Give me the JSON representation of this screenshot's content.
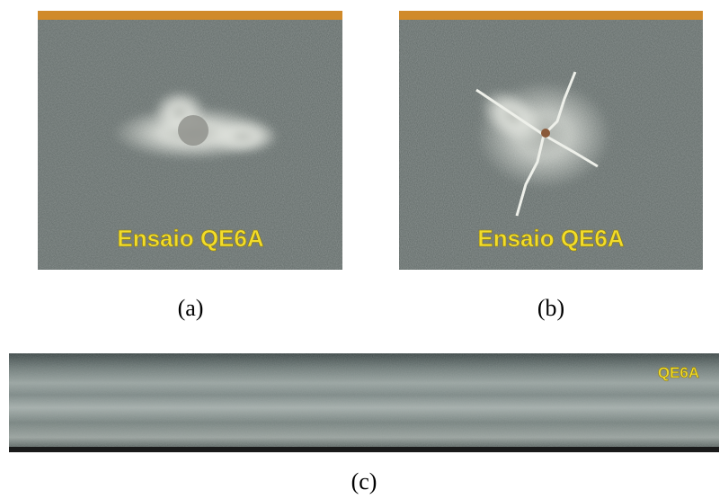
{
  "panels": [
    {
      "overlay": "Ensaio QE6A",
      "label": "(a)"
    },
    {
      "overlay": "Ensaio QE6A",
      "label": "(b)"
    },
    {
      "overlay": "QE6A",
      "label": "(c)"
    }
  ]
}
